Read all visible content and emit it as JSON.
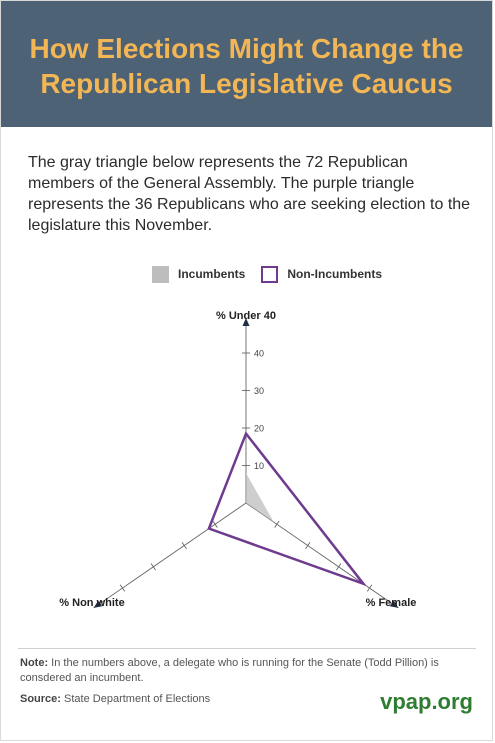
{
  "header": {
    "title_line1": "How Elections Might Change the",
    "title_line2": "Republican Legislative Caucus"
  },
  "intro": "The gray triangle below represents the 72 Republican members of the General Assembly. The purple triangle represents the 36 Republicans who are seeking election to the legislature this November.",
  "legend": {
    "incumbents": "Incumbents",
    "non_incumbents": "Non-Incumbents"
  },
  "colors": {
    "header_bg": "#4e6275",
    "title": "#f3b654",
    "incumbents": "#bdbdbd",
    "non_incumbents": "#6f3b8f",
    "brand": "#2e7d32"
  },
  "chart_data": {
    "type": "radar",
    "axes": [
      "% Under 40",
      "% Female",
      "% Non white"
    ],
    "ticks": [
      10,
      20,
      30,
      40
    ],
    "range": [
      0,
      40
    ],
    "series": [
      {
        "name": "Incumbents",
        "values": [
          8,
          9,
          0
        ]
      },
      {
        "name": "Non-Incumbents",
        "values": [
          18.5,
          38,
          12
        ]
      }
    ]
  },
  "footer": {
    "note_label": "Note:",
    "note_text": " In the numbers above, a delegate who is running for the Senate (Todd Pillion) is consdered an incumbent.",
    "source_label": "Source:",
    "source_text": " State Department of Elections",
    "brand": "vpap.org"
  }
}
